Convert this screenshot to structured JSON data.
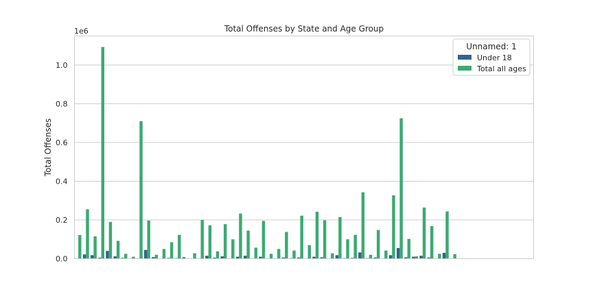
{
  "chart_data": {
    "type": "bar",
    "title": "Total Offenses by State and Age Group",
    "xlabel": "",
    "ylabel": "Total Offenses",
    "y_offset_text": "1e6",
    "ylim": [
      0,
      1150000
    ],
    "yticks": [
      0,
      200000,
      400000,
      600000,
      800000,
      1000000
    ],
    "ytick_labels": [
      "0.0",
      "0.2",
      "0.4",
      "0.6",
      "0.8",
      "1.0"
    ],
    "grid": true,
    "legend_placement": "top-right",
    "legend_title": "Unnamed: 1",
    "category_count": 60,
    "series": [
      {
        "name": "Under 18",
        "color": "#33638d",
        "values": [
          1000,
          22000,
          18000,
          5000,
          40000,
          12000,
          4000,
          1000,
          2000,
          45000,
          8000,
          1000,
          4000,
          3000,
          7000,
          1000,
          2000,
          15000,
          5000,
          12000,
          1000,
          10000,
          15000,
          1000,
          10000,
          1000,
          2000,
          6000,
          3000,
          6000,
          1000,
          10000,
          7000,
          1000,
          18000,
          3000,
          4000,
          32000,
          3000,
          6000,
          1000,
          18000,
          55000,
          7000,
          10000,
          15000,
          6000,
          1000,
          30000,
          1000,
          0,
          0,
          0,
          0,
          0,
          0,
          0,
          0,
          0,
          0
        ]
      },
      {
        "name": "Total all ages",
        "color": "#3aaa72",
        "values": [
          122000,
          255000,
          115000,
          1093000,
          190000,
          92000,
          25000,
          10000,
          710000,
          197000,
          20000,
          50000,
          85000,
          123000,
          1000,
          28000,
          200000,
          172000,
          38000,
          178000,
          100000,
          233000,
          145000,
          57000,
          195000,
          25000,
          50000,
          138000,
          42000,
          222000,
          70000,
          242000,
          198000,
          28000,
          215000,
          100000,
          123000,
          343000,
          20000,
          148000,
          42000,
          327000,
          725000,
          102000,
          12000,
          264000,
          168000,
          25000,
          244000,
          23000,
          0,
          0,
          0,
          0,
          0,
          0,
          0,
          0,
          0,
          0
        ]
      }
    ]
  }
}
